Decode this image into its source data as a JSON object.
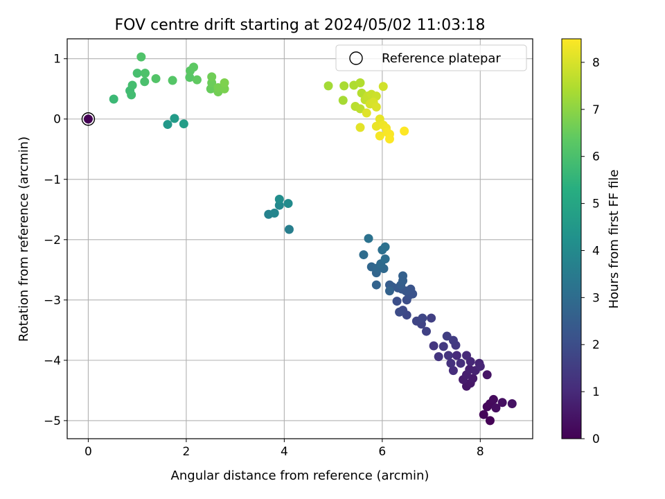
{
  "chart_data": {
    "type": "scatter",
    "title": "FOV centre drift starting at 2024/05/02 11:03:18",
    "xlabel": "Angular distance from reference (arcmin)",
    "ylabel": "Rotation from reference (arcmin)",
    "xlim": [
      -0.43,
      9.07
    ],
    "ylim": [
      -5.3,
      1.33
    ],
    "xticks": [
      0,
      2,
      4,
      6,
      8
    ],
    "yticks": [
      1,
      0,
      -1,
      -2,
      -3,
      -4,
      -5
    ],
    "xtick_labels": [
      "0",
      "2",
      "4",
      "6",
      "8"
    ],
    "ytick_labels": [
      "1",
      "0",
      "−1",
      "−2",
      "−3",
      "−4",
      "−5"
    ],
    "grid": true,
    "legend": {
      "location": "upper right",
      "entries": [
        "Reference platepar"
      ]
    },
    "colorbar": {
      "label": "Hours from first FF file",
      "colormap": "viridis",
      "range": [
        0,
        8.5
      ],
      "ticks": [
        0,
        1,
        2,
        3,
        4,
        5,
        6,
        7,
        8
      ],
      "tick_labels": [
        "0",
        "1",
        "2",
        "3",
        "4",
        "5",
        "6",
        "7",
        "8"
      ]
    },
    "reference_point": {
      "x": 0,
      "y": 0,
      "c": 0
    },
    "points": [
      {
        "x": 8.2,
        "y": -5.0,
        "c": 0.05
      },
      {
        "x": 8.07,
        "y": -4.9,
        "c": 0.1
      },
      {
        "x": 8.14,
        "y": -4.77,
        "c": 0.15
      },
      {
        "x": 8.2,
        "y": -4.72,
        "c": 0.2
      },
      {
        "x": 8.27,
        "y": -4.65,
        "c": 0.25
      },
      {
        "x": 8.32,
        "y": -4.79,
        "c": 0.3
      },
      {
        "x": 8.45,
        "y": -4.7,
        "c": 0.35
      },
      {
        "x": 8.65,
        "y": -4.72,
        "c": 0.4
      },
      {
        "x": 8.14,
        "y": -4.24,
        "c": 0.45
      },
      {
        "x": 7.72,
        "y": -4.43,
        "c": 0.5
      },
      {
        "x": 7.8,
        "y": -4.38,
        "c": 0.55
      },
      {
        "x": 7.85,
        "y": -4.3,
        "c": 0.6
      },
      {
        "x": 7.65,
        "y": -4.32,
        "c": 0.65
      },
      {
        "x": 7.72,
        "y": -4.24,
        "c": 0.7
      },
      {
        "x": 7.78,
        "y": -4.15,
        "c": 0.75
      },
      {
        "x": 7.9,
        "y": -4.17,
        "c": 0.8
      },
      {
        "x": 7.98,
        "y": -4.05,
        "c": 0.85
      },
      {
        "x": 8.0,
        "y": -4.1,
        "c": 0.9
      },
      {
        "x": 7.8,
        "y": -4.02,
        "c": 0.95
      },
      {
        "x": 7.72,
        "y": -3.92,
        "c": 1.0
      },
      {
        "x": 7.52,
        "y": -3.92,
        "c": 1.05
      },
      {
        "x": 7.45,
        "y": -4.17,
        "c": 1.1
      },
      {
        "x": 7.6,
        "y": -4.05,
        "c": 1.15
      },
      {
        "x": 7.4,
        "y": -4.05,
        "c": 1.2
      },
      {
        "x": 7.35,
        "y": -3.92,
        "c": 1.25
      },
      {
        "x": 7.15,
        "y": -3.94,
        "c": 1.3
      },
      {
        "x": 7.05,
        "y": -3.76,
        "c": 1.35
      },
      {
        "x": 7.25,
        "y": -3.77,
        "c": 1.4
      },
      {
        "x": 7.5,
        "y": -3.75,
        "c": 1.45
      },
      {
        "x": 7.45,
        "y": -3.67,
        "c": 1.5
      },
      {
        "x": 7.32,
        "y": -3.6,
        "c": 1.55
      },
      {
        "x": 7.0,
        "y": -3.3,
        "c": 1.6
      },
      {
        "x": 6.9,
        "y": -3.52,
        "c": 1.65
      },
      {
        "x": 6.8,
        "y": -3.4,
        "c": 1.7
      },
      {
        "x": 6.7,
        "y": -3.35,
        "c": 1.75
      },
      {
        "x": 6.82,
        "y": -3.3,
        "c": 1.8
      },
      {
        "x": 6.5,
        "y": -3.25,
        "c": 1.85
      },
      {
        "x": 6.42,
        "y": -3.17,
        "c": 1.9
      },
      {
        "x": 6.35,
        "y": -3.2,
        "c": 1.95
      },
      {
        "x": 6.5,
        "y": -3.0,
        "c": 2.0
      },
      {
        "x": 6.3,
        "y": -3.02,
        "c": 2.05
      },
      {
        "x": 6.55,
        "y": -2.92,
        "c": 2.1
      },
      {
        "x": 6.62,
        "y": -2.9,
        "c": 2.15
      },
      {
        "x": 6.58,
        "y": -2.82,
        "c": 2.2
      },
      {
        "x": 6.48,
        "y": -2.85,
        "c": 2.25
      },
      {
        "x": 6.4,
        "y": -2.82,
        "c": 2.3
      },
      {
        "x": 6.32,
        "y": -2.8,
        "c": 2.35
      },
      {
        "x": 6.2,
        "y": -2.78,
        "c": 2.4
      },
      {
        "x": 6.15,
        "y": -2.75,
        "c": 2.45
      },
      {
        "x": 6.38,
        "y": -2.75,
        "c": 2.5
      },
      {
        "x": 6.42,
        "y": -2.68,
        "c": 2.55
      },
      {
        "x": 6.42,
        "y": -2.6,
        "c": 2.6
      },
      {
        "x": 6.15,
        "y": -2.85,
        "c": 2.65
      },
      {
        "x": 5.88,
        "y": -2.75,
        "c": 2.7
      },
      {
        "x": 5.88,
        "y": -2.55,
        "c": 2.75
      },
      {
        "x": 5.78,
        "y": -2.45,
        "c": 2.8
      },
      {
        "x": 5.9,
        "y": -2.47,
        "c": 2.85
      },
      {
        "x": 6.03,
        "y": -2.48,
        "c": 2.9
      },
      {
        "x": 5.97,
        "y": -2.4,
        "c": 2.95
      },
      {
        "x": 5.62,
        "y": -2.25,
        "c": 3.0
      },
      {
        "x": 6.06,
        "y": -2.32,
        "c": 3.05
      },
      {
        "x": 6.0,
        "y": -2.17,
        "c": 3.1
      },
      {
        "x": 6.06,
        "y": -2.12,
        "c": 3.15
      },
      {
        "x": 5.72,
        "y": -1.98,
        "c": 3.2
      },
      {
        "x": 4.1,
        "y": -1.83,
        "c": 3.6
      },
      {
        "x": 3.68,
        "y": -1.58,
        "c": 3.75
      },
      {
        "x": 3.8,
        "y": -1.56,
        "c": 3.85
      },
      {
        "x": 3.9,
        "y": -1.43,
        "c": 3.95
      },
      {
        "x": 4.08,
        "y": -1.4,
        "c": 4.05
      },
      {
        "x": 3.9,
        "y": -1.33,
        "c": 4.15
      },
      {
        "x": 1.62,
        "y": -0.09,
        "c": 4.5
      },
      {
        "x": 1.76,
        "y": 0.01,
        "c": 4.6
      },
      {
        "x": 1.95,
        "y": -0.08,
        "c": 4.7
      },
      {
        "x": 0.52,
        "y": 0.33,
        "c": 5.7
      },
      {
        "x": 0.85,
        "y": 0.47,
        "c": 5.8
      },
      {
        "x": 0.88,
        "y": 0.4,
        "c": 5.85
      },
      {
        "x": 0.9,
        "y": 0.56,
        "c": 5.9
      },
      {
        "x": 1.0,
        "y": 0.76,
        "c": 5.95
      },
      {
        "x": 1.15,
        "y": 0.62,
        "c": 6.0
      },
      {
        "x": 1.16,
        "y": 0.76,
        "c": 6.05
      },
      {
        "x": 1.08,
        "y": 1.03,
        "c": 6.1
      },
      {
        "x": 1.38,
        "y": 0.67,
        "c": 6.15
      },
      {
        "x": 1.72,
        "y": 0.64,
        "c": 6.2
      },
      {
        "x": 2.07,
        "y": 0.69,
        "c": 6.25
      },
      {
        "x": 2.08,
        "y": 0.8,
        "c": 6.3
      },
      {
        "x": 2.15,
        "y": 0.86,
        "c": 6.35
      },
      {
        "x": 2.22,
        "y": 0.65,
        "c": 6.4
      },
      {
        "x": 2.5,
        "y": 0.5,
        "c": 6.5
      },
      {
        "x": 2.52,
        "y": 0.6,
        "c": 6.55
      },
      {
        "x": 2.52,
        "y": 0.7,
        "c": 6.6
      },
      {
        "x": 2.65,
        "y": 0.45,
        "c": 6.65
      },
      {
        "x": 2.65,
        "y": 0.52,
        "c": 6.7
      },
      {
        "x": 2.78,
        "y": 0.5,
        "c": 6.75
      },
      {
        "x": 2.78,
        "y": 0.6,
        "c": 6.8
      },
      {
        "x": 4.9,
        "y": 0.55,
        "c": 7.3
      },
      {
        "x": 5.2,
        "y": 0.31,
        "c": 7.35
      },
      {
        "x": 5.22,
        "y": 0.55,
        "c": 7.4
      },
      {
        "x": 5.42,
        "y": 0.56,
        "c": 7.45
      },
      {
        "x": 5.55,
        "y": 0.6,
        "c": 7.5
      },
      {
        "x": 5.58,
        "y": 0.43,
        "c": 7.55
      },
      {
        "x": 5.45,
        "y": 0.21,
        "c": 7.6
      },
      {
        "x": 5.55,
        "y": 0.17,
        "c": 7.65
      },
      {
        "x": 5.65,
        "y": 0.32,
        "c": 7.7
      },
      {
        "x": 5.7,
        "y": 0.38,
        "c": 7.75
      },
      {
        "x": 5.78,
        "y": 0.41,
        "c": 7.8
      },
      {
        "x": 5.88,
        "y": 0.38,
        "c": 7.85
      },
      {
        "x": 6.02,
        "y": 0.54,
        "c": 7.9
      },
      {
        "x": 5.75,
        "y": 0.25,
        "c": 7.95
      },
      {
        "x": 5.82,
        "y": 0.28,
        "c": 8.0
      },
      {
        "x": 5.88,
        "y": 0.2,
        "c": 8.05
      },
      {
        "x": 5.68,
        "y": 0.1,
        "c": 8.1
      },
      {
        "x": 5.55,
        "y": -0.14,
        "c": 8.15
      },
      {
        "x": 5.95,
        "y": 0.0,
        "c": 8.2
      },
      {
        "x": 5.88,
        "y": -0.12,
        "c": 8.25
      },
      {
        "x": 6.02,
        "y": -0.1,
        "c": 8.3
      },
      {
        "x": 6.08,
        "y": -0.15,
        "c": 8.35
      },
      {
        "x": 5.95,
        "y": -0.28,
        "c": 8.4
      },
      {
        "x": 6.1,
        "y": -0.22,
        "c": 8.42
      },
      {
        "x": 6.15,
        "y": -0.25,
        "c": 8.45
      },
      {
        "x": 6.15,
        "y": -0.33,
        "c": 8.48
      },
      {
        "x": 6.45,
        "y": -0.2,
        "c": 8.5
      }
    ]
  }
}
